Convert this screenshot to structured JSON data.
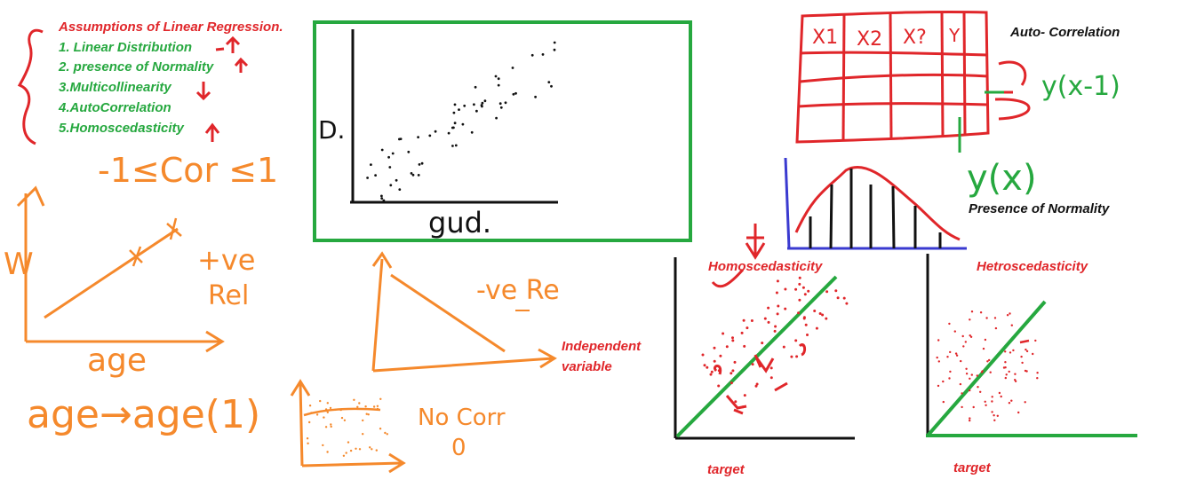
{
  "colors": {
    "red": "#e0262a",
    "green": "#26a83f",
    "orange": "#f5892c",
    "black": "#111111",
    "blue": "#3a3ad0"
  },
  "assumptions": {
    "title": "Assumptions  of Linear Regression.",
    "items": [
      "1. Linear Distribution",
      "2. presence of Normality",
      "3.Multicollinearity",
      "4.AutoCorrelation",
      "5.Homoscedasticity"
    ]
  },
  "correlation": {
    "range": "-1≤Cor ≤1",
    "pos_axis_y": "W",
    "pos_axis_x": "age",
    "pos_label_1": "+ve",
    "pos_label_2": "Rel",
    "transform": "age→age(1)",
    "neg_label": "-ve Re",
    "independent_1": "Independent",
    "independent_2": "variable",
    "nocorr_1": "No Corr",
    "nocorr_2": "0"
  },
  "scatter_box": {
    "ylabel": "D.",
    "xlabel": "gud."
  },
  "autocorr": {
    "title": "Auto- Correlation",
    "headers": [
      "X1",
      "X2",
      "X?",
      "Y"
    ],
    "lag_label": "y(x-1)",
    "current_label": "y(x)"
  },
  "normality": {
    "title": "Presence of Normality"
  },
  "homo": {
    "title": "Homoscedasticity",
    "xlabel": "target"
  },
  "hetro": {
    "title": "Hetroscedasticity",
    "xlabel": "target"
  }
}
